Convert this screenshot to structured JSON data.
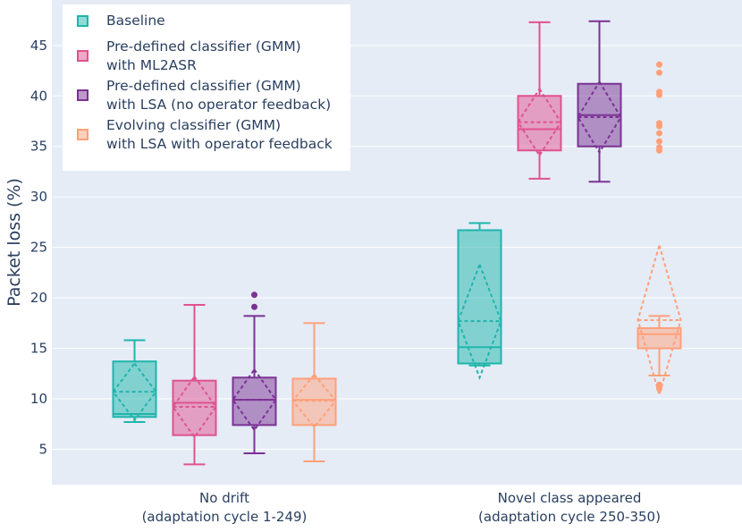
{
  "chart_data": {
    "type": "box",
    "title": "",
    "xlabel": "",
    "ylabel": "Packet loss (%)",
    "ylim": [
      1.5,
      49.5
    ],
    "yticks": [
      5,
      10,
      15,
      20,
      25,
      30,
      35,
      40,
      45
    ],
    "categories": [
      "No drift\n(adaptation cycle 1-249)",
      "Novel class appeared\n(adaptation cycle 250-350)"
    ],
    "series": [
      {
        "name": "Baseline",
        "color": "#1fb5ab",
        "boxes": [
          {
            "min": 7.7,
            "q1": 8.2,
            "median": 8.5,
            "q3": 13.7,
            "max": 15.8,
            "mean": 10.7,
            "sd": 2.8,
            "outliers": []
          },
          {
            "min": 13.3,
            "q1": 13.5,
            "median": 15.1,
            "q3": 26.7,
            "max": 27.4,
            "mean": 17.7,
            "sd": 5.6,
            "outliers": []
          }
        ]
      },
      {
        "name": "Pre-defined classifier (GMM)\nwith ML2ASR",
        "color": "#e0528f",
        "boxes": [
          {
            "min": 3.5,
            "q1": 6.4,
            "median": 9.6,
            "q3": 11.8,
            "max": 19.3,
            "mean": 9.2,
            "sd": 3.0,
            "outliers": []
          },
          {
            "min": 31.8,
            "q1": 34.6,
            "median": 36.7,
            "q3": 40.0,
            "max": 47.3,
            "mean": 37.4,
            "sd": 3.3,
            "outliers": []
          }
        ]
      },
      {
        "name": "Pre-defined classifier (GMM)\nwith LSA (no operator feedback)",
        "color": "#7b3294",
        "boxes": [
          {
            "min": 4.6,
            "q1": 7.4,
            "median": 9.9,
            "q3": 12.1,
            "max": 18.2,
            "mean": 9.9,
            "sd": 3.0,
            "outliers": [
              19.1,
              20.3
            ]
          },
          {
            "min": 31.5,
            "q1": 35.0,
            "median": 38.1,
            "q3": 41.2,
            "max": 47.4,
            "mean": 37.9,
            "sd": 3.5,
            "outliers": []
          }
        ]
      },
      {
        "name": "Evolving classifier (GMM)\nwith LSA with operator feedback",
        "color": "#ffa07a",
        "boxes": [
          {
            "min": 3.8,
            "q1": 7.4,
            "median": 9.9,
            "q3": 12.0,
            "max": 17.5,
            "mean": 9.8,
            "sd": 2.6,
            "outliers": []
          },
          {
            "min": 12.3,
            "q1": 15.0,
            "median": 16.4,
            "q3": 17.0,
            "max": 18.2,
            "mean": 17.8,
            "sd": 7.4,
            "outliers": [
              34.6,
              34.9,
              35.5,
              36.3,
              37.0,
              37.3,
              40.1,
              40.4,
              42.3,
              43.1,
              11.0,
              11.4
            ]
          }
        ]
      }
    ]
  }
}
